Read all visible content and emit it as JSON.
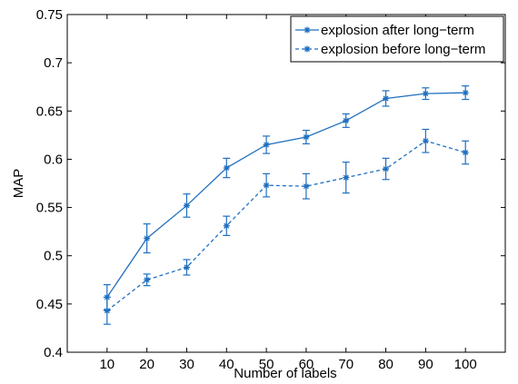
{
  "chart_data": {
    "type": "line",
    "title": "",
    "xlabel": "Number of labels",
    "ylabel": "MAP",
    "x": [
      10,
      20,
      30,
      40,
      50,
      60,
      70,
      80,
      90,
      100
    ],
    "xtick_labels": [
      "10",
      "20",
      "30",
      "40",
      "50",
      "60",
      "70",
      "80",
      "90",
      "100"
    ],
    "xlim": [
      0,
      110
    ],
    "ylim": [
      0.4,
      0.75
    ],
    "ytick_values": [
      0.4,
      0.45,
      0.5,
      0.55,
      0.6,
      0.65,
      0.7,
      0.75
    ],
    "ytick_labels": [
      "0.4",
      "0.45",
      "0.5",
      "0.55",
      "0.6",
      "0.65",
      "0.7",
      "0.75"
    ],
    "grid": false,
    "legend_position": "top-right",
    "series": [
      {
        "name": "explosion after long−term",
        "line_style": "solid",
        "marker": "star",
        "color": "#1f6fc0",
        "values": [
          0.457,
          0.518,
          0.552,
          0.591,
          0.615,
          0.623,
          0.64,
          0.663,
          0.668,
          0.669
        ],
        "errors": [
          0.013,
          0.015,
          0.012,
          0.01,
          0.009,
          0.007,
          0.007,
          0.008,
          0.006,
          0.007
        ]
      },
      {
        "name": "explosion before long−term",
        "line_style": "dashed",
        "marker": "star",
        "color": "#1f6fc0",
        "values": [
          0.443,
          0.475,
          0.488,
          0.531,
          0.573,
          0.572,
          0.581,
          0.59,
          0.619,
          0.607
        ],
        "errors": [
          0.014,
          0.006,
          0.008,
          0.01,
          0.012,
          0.013,
          0.016,
          0.011,
          0.012,
          0.012
        ]
      }
    ]
  }
}
